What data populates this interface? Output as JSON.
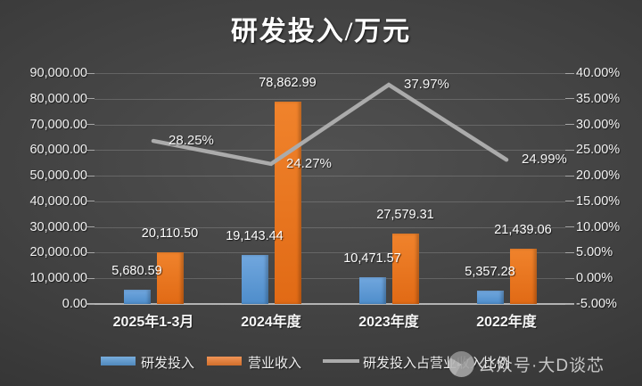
{
  "title": "研发投入/万元",
  "watermark": {
    "icon": "wechat-official-account-logo",
    "text": "公众号·大D谈芯"
  },
  "colors": {
    "rd_bar_blue": "#5B9BD5",
    "revenue_bar_orange": "#ED7D31",
    "ratio_line_gray": "#ABABAB",
    "background_dark": "#3D3D3D",
    "text_white": "#F2F2F2"
  },
  "chart_data": {
    "type": "bar+line combo",
    "title": "研发投入/万元",
    "categories": [
      "2025年1-3月",
      "2024年度",
      "2023年度",
      "2022年度"
    ],
    "series": [
      {
        "name": "研发投入",
        "semantic": "rd-investment",
        "type": "bar",
        "axis": "left",
        "color": "#5B9BD5",
        "values": [
          5680.59,
          19143.44,
          10471.57,
          5357.28
        ]
      },
      {
        "name": "营业收入",
        "semantic": "operating-revenue",
        "type": "bar",
        "axis": "left",
        "color": "#ED7D31",
        "values": [
          20110.5,
          78862.99,
          27579.31,
          21439.06
        ]
      },
      {
        "name": "研发投入占营业收入比例",
        "semantic": "rd-to-revenue-ratio",
        "type": "line",
        "axis": "right",
        "color": "#ABABAB",
        "values": [
          28.25,
          24.27,
          37.97,
          24.99
        ]
      }
    ],
    "left_axis": {
      "min": 0,
      "max": 90000,
      "step": 10000,
      "format": "thousands, 2 decimals"
    },
    "right_axis": {
      "min": 0,
      "max": 40,
      "step": 5,
      "format": "percent, 2 decimals"
    },
    "grid": true,
    "legend_position": "bottom",
    "data_labels": true
  }
}
